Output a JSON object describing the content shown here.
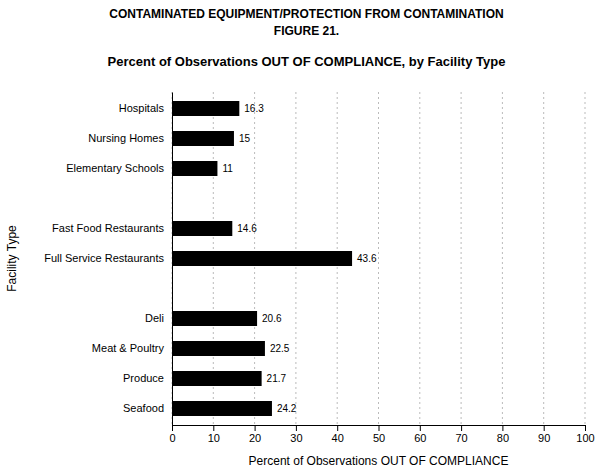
{
  "chart_data": {
    "type": "bar",
    "orientation": "horizontal",
    "title": [
      "CONTAMINATED EQUIPMENT/PROTECTION FROM CONTAMINATION",
      "FIGURE 21."
    ],
    "subtitle": "Percent of Observations OUT OF COMPLIANCE, by Facility Type",
    "x_label": "Percent of Observations OUT OF COMPLIANCE",
    "y_label": "Facility Type",
    "categories": [
      "Hospitals",
      "Nursing Homes",
      "Elementary Schools",
      null,
      "Fast Food Restaurants",
      "Full Service Restaurants",
      null,
      "Deli",
      "Meat & Poultry",
      "Produce",
      "Seafood"
    ],
    "values": [
      16.3,
      15,
      11,
      null,
      14.6,
      43.6,
      null,
      20.6,
      22.5,
      21.7,
      24.2
    ],
    "color": "#000000",
    "xlim": [
      0,
      100
    ],
    "xticks": [
      0,
      10,
      20,
      30,
      40,
      50,
      60,
      70,
      80,
      90,
      100
    ],
    "grid": true,
    "data_labels": true
  }
}
